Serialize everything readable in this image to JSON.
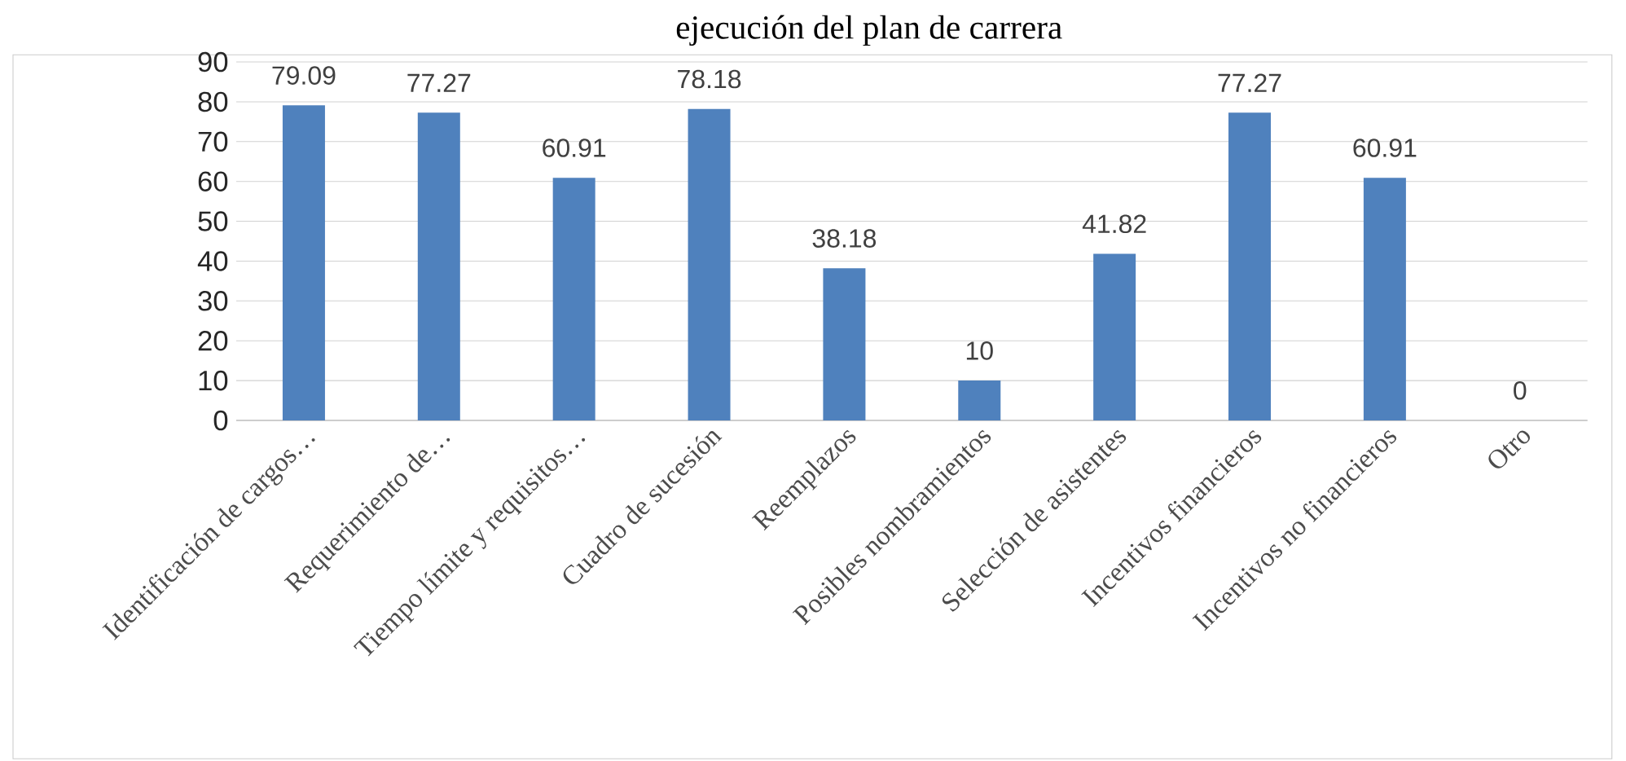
{
  "chart_data": {
    "type": "bar",
    "title": "ejecución del plan de carrera",
    "categories": [
      "Identificación de cargos…",
      "Requerimiento de…",
      "Tiempo límite y requisitos…",
      "Cuadro de sucesión",
      "Reemplazos",
      "Posibles nombramientos",
      "Selección de asistentes",
      "Incentivos financieros",
      "Incentivos no financieros",
      "Otro"
    ],
    "values": [
      79.09,
      77.27,
      60.91,
      78.18,
      38.18,
      10,
      41.82,
      77.27,
      60.91,
      0
    ],
    "color": "#4f81bd",
    "ylim": [
      0,
      90
    ],
    "yticks": [
      0,
      10,
      20,
      30,
      40,
      50,
      60,
      70,
      80,
      90
    ],
    "grid": "y",
    "data_labels": true
  }
}
